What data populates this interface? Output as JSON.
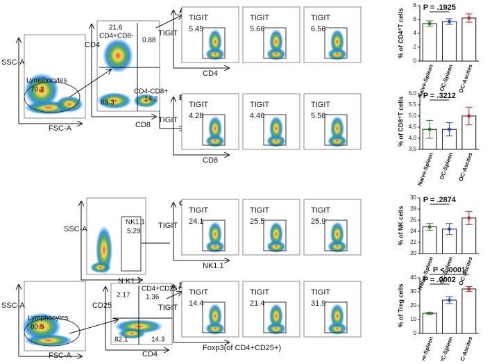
{
  "figure": {
    "row1": {
      "gate1": {
        "y_axis": "SSC-A",
        "x_axis": "FSC-A",
        "gate": "Lymphocytes",
        "value": "70.2"
      },
      "gate2": {
        "y_axis": "CD4",
        "x_axis": "CD8",
        "q_ul_name": "CD4+CD8-",
        "q_ul": "21.6",
        "q_ur": "0.88",
        "q_ll": "63.3",
        "q_lr_name": "CD4-CD8+",
        "q_lr": "14.2"
      }
    },
    "nk_gate": {
      "y_axis": "SSC-A",
      "x_axis": "N K1.1",
      "gate": "NK1.1",
      "value": "5.29"
    },
    "treg": {
      "gate1": {
        "y_axis": "SSC-A",
        "x_axis": "FSC-A",
        "gate": "Lymphocytes",
        "value": "80.5"
      },
      "gate2": {
        "y_axis": "CD25",
        "x_axis": "CD4",
        "q_ur_name": "CD4+CD25+",
        "q_ur": "1.36",
        "q_ul": "2.17",
        "q_ll": "82.1",
        "q_lr": "14.3"
      }
    },
    "panels": [
      {
        "letter": "A",
        "y_axis": "TIGIT",
        "x_axis": "CD4",
        "plot_label": "TIGIT",
        "values": [
          "5.45",
          "5.66",
          "6.56"
        ]
      },
      {
        "letter": "B",
        "y_axis": "TIGIT",
        "x_axis": "CD8",
        "plot_label": "TIGIT",
        "values": [
          "4.28",
          "4.46",
          "5.58"
        ]
      },
      {
        "letter": "C",
        "y_axis": "TIGIT",
        "x_axis": "NK1.1",
        "plot_label": "TIGIT",
        "values": [
          "24.1",
          "25.5",
          "25.9"
        ]
      },
      {
        "letter": "D",
        "y_axis": "TIGIT",
        "x_axis": "Foxp3(of CD4+CD25+)",
        "plot_label": "TIGIT",
        "values": [
          "14.4",
          "21.4",
          "31.9"
        ]
      }
    ]
  },
  "chart_data": [
    {
      "type": "bar",
      "ylabel": "% of CD4⁺T cells",
      "categories": [
        "Naive-Spleen",
        "OC-Spleen",
        "OC-Ascites"
      ],
      "values": [
        5.4,
        5.7,
        6.2
      ],
      "errors": [
        0.4,
        0.4,
        0.6
      ],
      "colors": [
        "#2e7d32",
        "#1f4fc4",
        "#c62828"
      ],
      "ylim": [
        0,
        8
      ],
      "yticks": [
        0,
        2,
        4,
        6,
        8
      ],
      "annotations": [
        "P = .1925"
      ]
    },
    {
      "type": "bar",
      "ylabel": "% of CD8⁺T cells",
      "categories": [
        "Naive-Spleen",
        "OC-Spleen",
        "OC-Ascites"
      ],
      "values": [
        4.4,
        4.4,
        5.0
      ],
      "errors": [
        0.4,
        0.3,
        0.4
      ],
      "colors": [
        "#2e7d32",
        "#1f4fc4",
        "#c62828"
      ],
      "ylim": [
        3.5,
        6
      ],
      "yticks": [
        3.5,
        {
          "value": 4,
          "label": "4.0"
        },
        4.5,
        {
          "value": 5,
          "label": "5.0"
        },
        5.5,
        {
          "value": 6,
          "label": "6.0"
        }
      ],
      "annotations": [
        "P = .3212"
      ]
    },
    {
      "type": "bar",
      "ylabel": "% of NK cells",
      "categories": [
        "Naive-Spleen",
        "OC-Spleen",
        "OC-Ascites"
      ],
      "values": [
        24.8,
        24.4,
        26.4
      ],
      "errors": [
        0.6,
        1.0,
        1.2
      ],
      "colors": [
        "#2e7d32",
        "#1f4fc4",
        "#c62828"
      ],
      "ylim": [
        20,
        30
      ],
      "yticks": [
        20,
        22,
        24,
        26,
        28,
        30
      ],
      "annotations": [
        "P = .2874"
      ]
    },
    {
      "type": "bar",
      "ylabel": "% of Treg cells",
      "categories": [
        "Naive-Spleen",
        "OC-Spleen",
        "OC-Ascites"
      ],
      "values": [
        14.5,
        24,
        32
      ],
      "errors": [
        0.6,
        2.5,
        1.8
      ],
      "colors": [
        "#2e7d32",
        "#1f4fc4",
        "#c62828"
      ],
      "ylim": [
        0,
        40
      ],
      "yticks": [
        0,
        10,
        20,
        30,
        40
      ],
      "annotations": [
        "P = .0002",
        "P < .0001"
      ]
    }
  ]
}
